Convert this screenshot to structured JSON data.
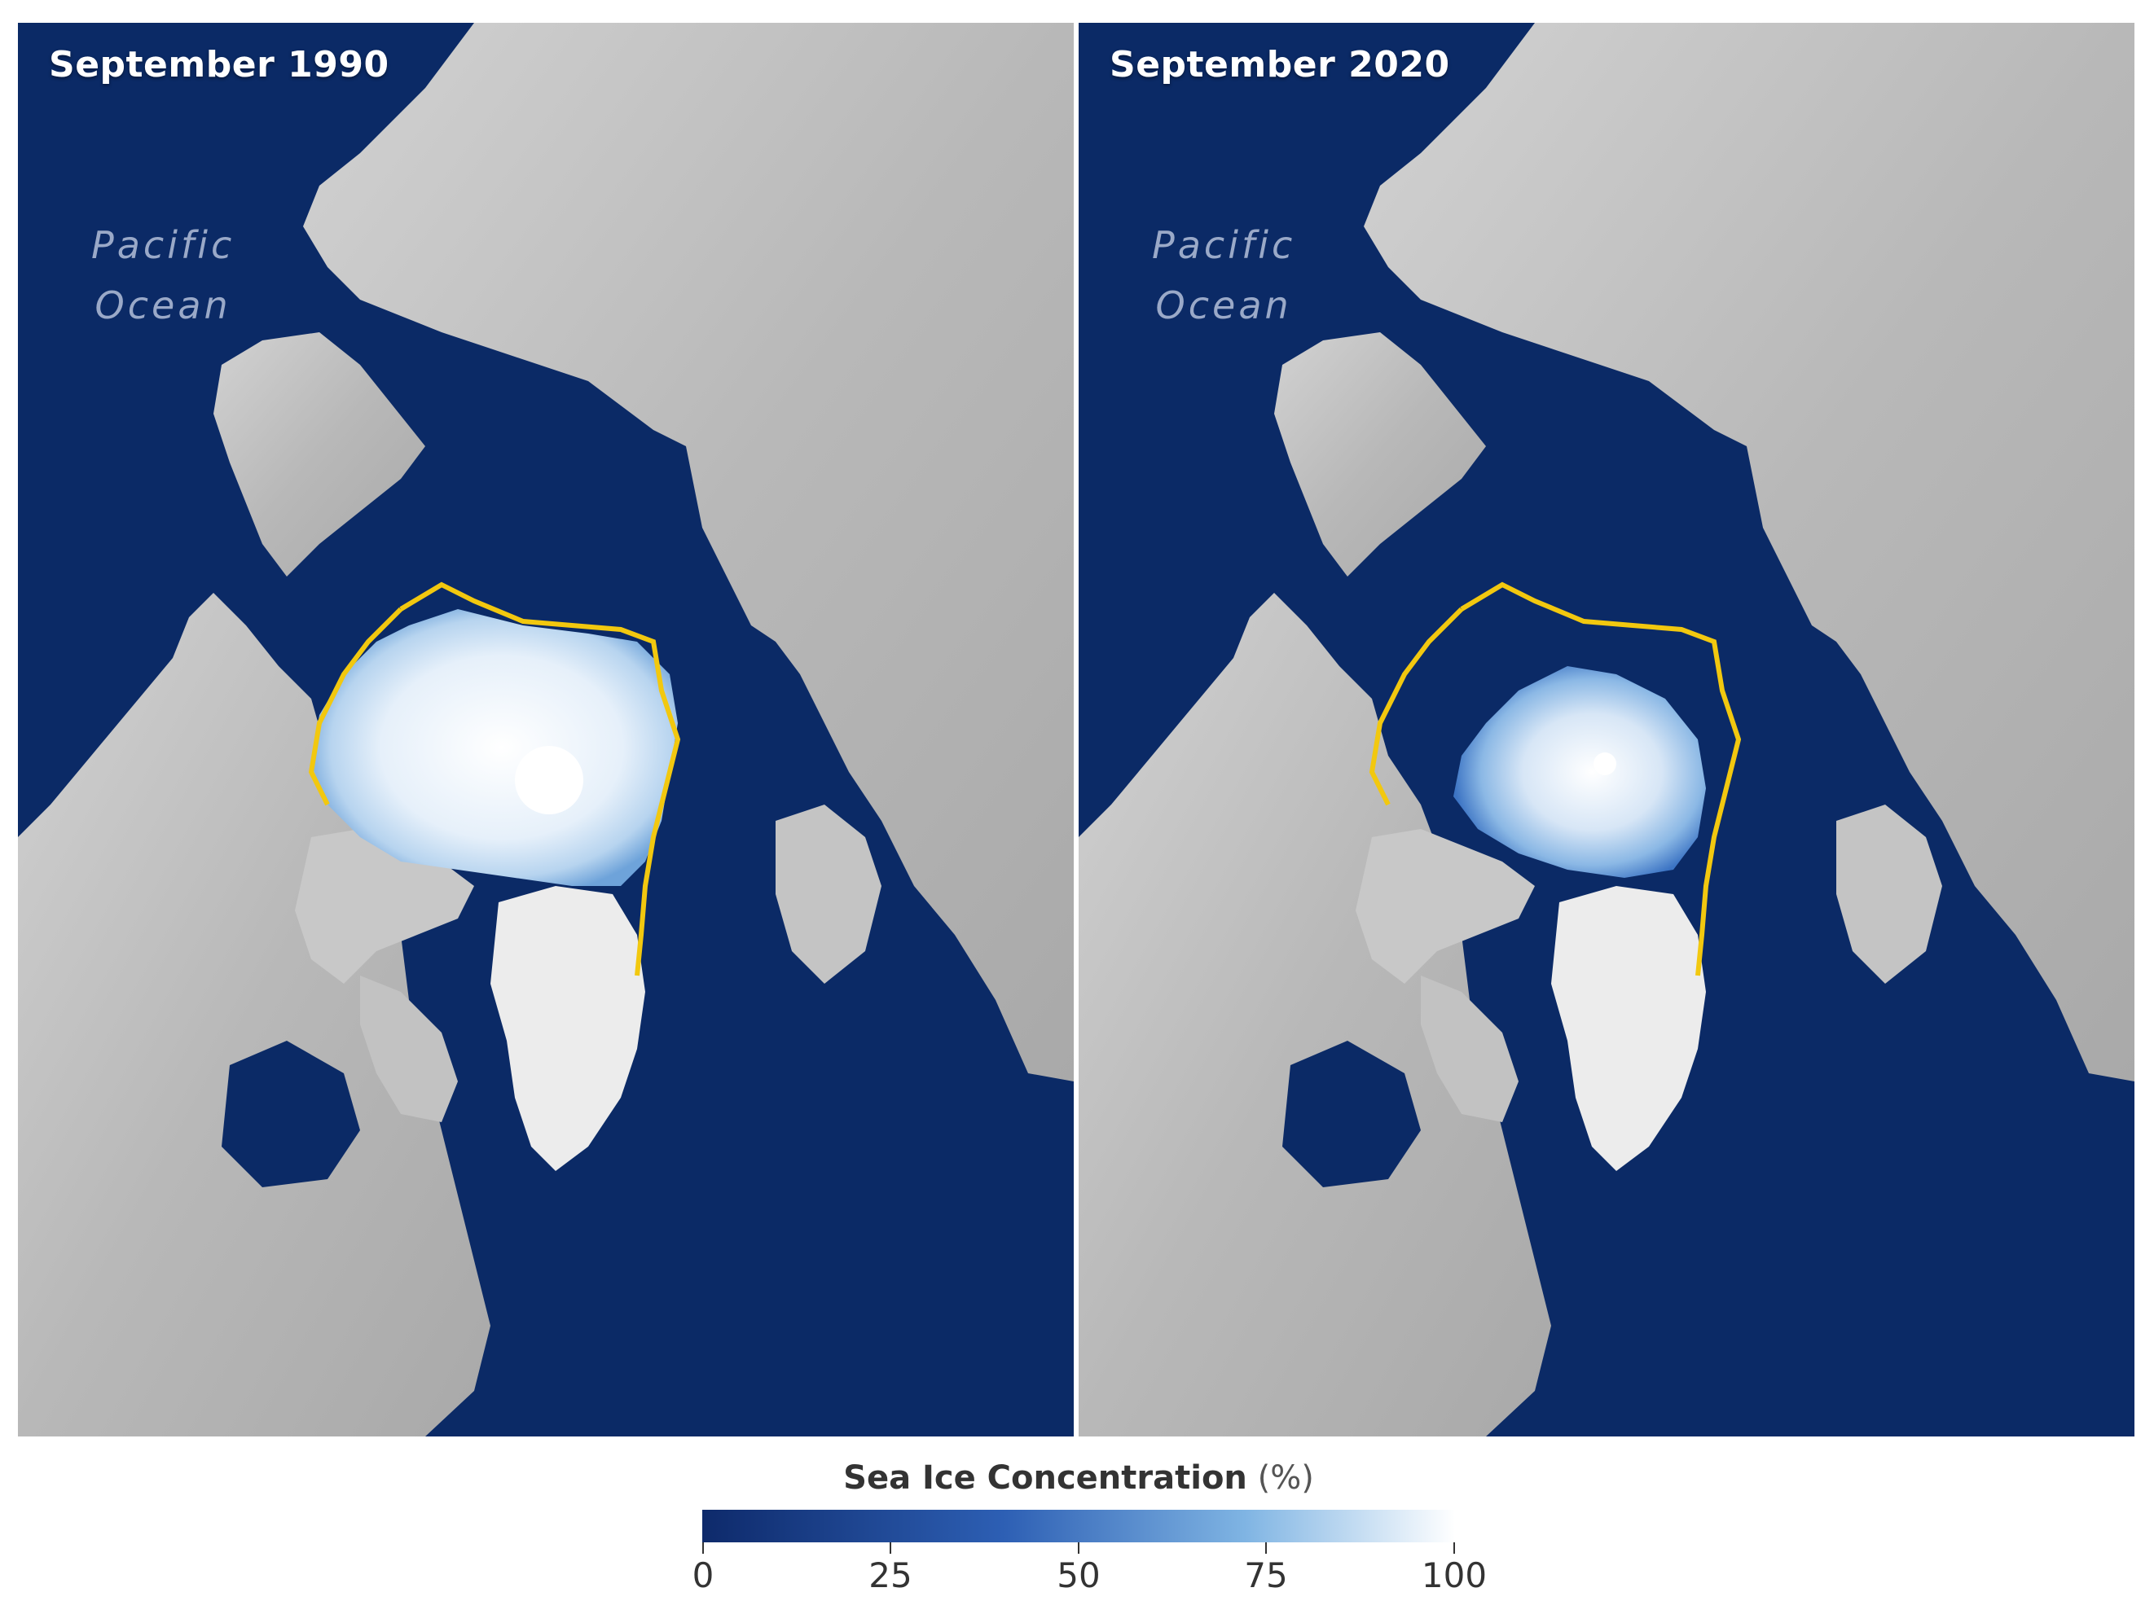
{
  "panels": [
    {
      "id": "left",
      "title": "September 1990",
      "ocean_label": [
        "Pacific",
        "Ocean"
      ],
      "pole_hole": "large"
    },
    {
      "id": "right",
      "title": "September 2020",
      "ocean_label": [
        "Pacific",
        "Ocean"
      ],
      "pole_hole": "small"
    }
  ],
  "legend": {
    "title": "Sea Ice Concentration",
    "unit": "(%)",
    "ticks": [
      "0",
      "25",
      "50",
      "75",
      "100"
    ],
    "range": [
      0,
      100
    ],
    "colors": [
      "#0e2a6b",
      "#2d5fb4",
      "#7fb4e3",
      "#ffffff"
    ]
  },
  "map_colors": {
    "ocean": "#0b2a66",
    "land": "#bdbdbd",
    "ice_outline": "#f2c80f",
    "greenland_ice": "#ececec"
  }
}
